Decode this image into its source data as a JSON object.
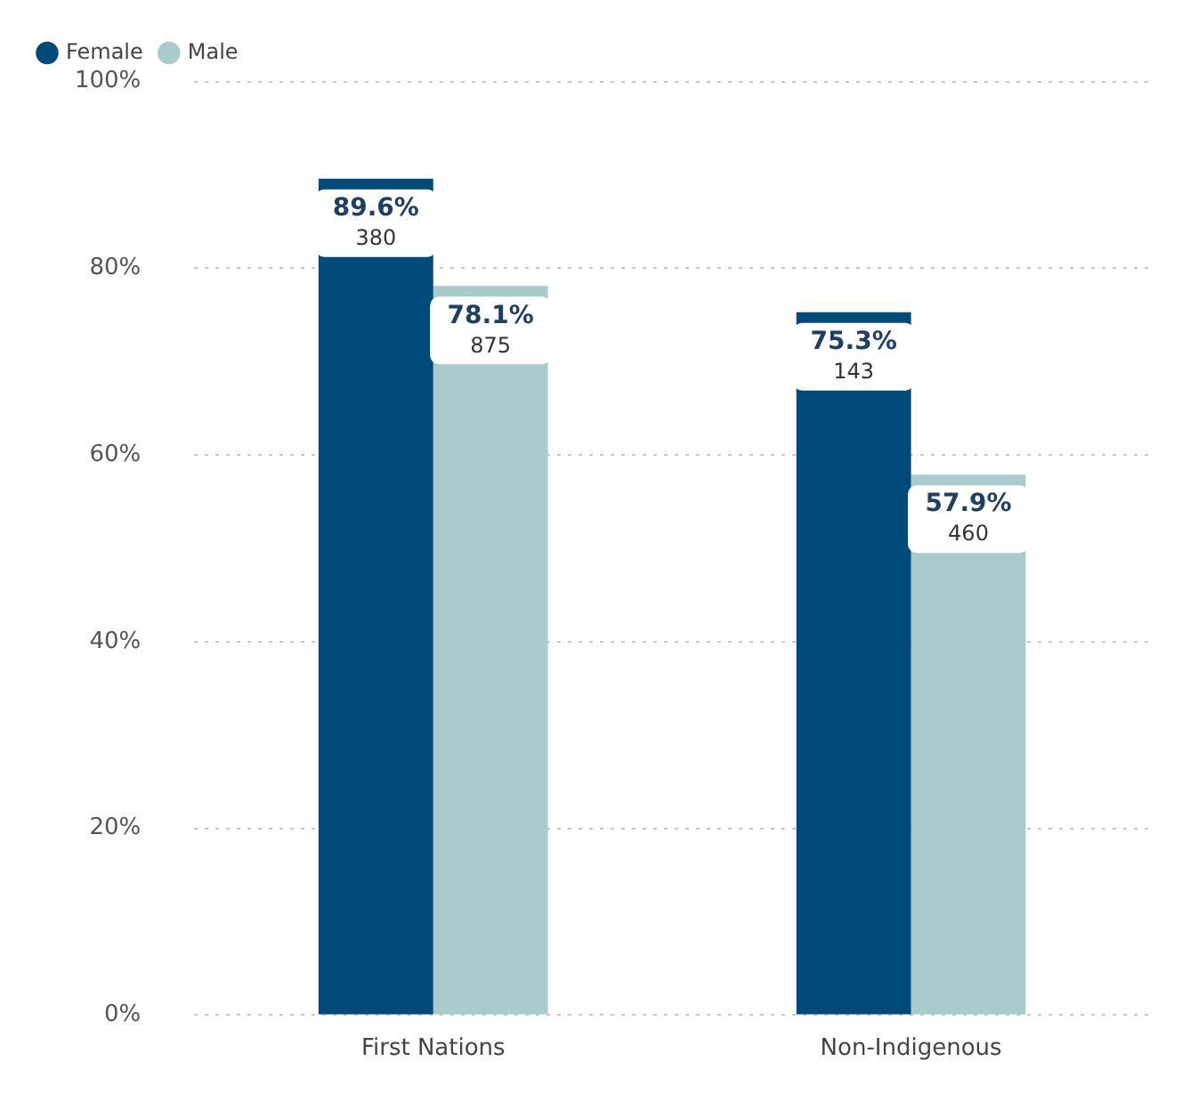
{
  "chart_data": {
    "type": "bar",
    "categories": [
      "First Nations",
      "Non-Indigenous"
    ],
    "series": [
      {
        "name": "Female",
        "color": "#004b7a",
        "values": [
          89.6,
          75.3
        ],
        "value_labels": [
          "89.6%\n380",
          "75.3%\n143"
        ]
      },
      {
        "name": "Male",
        "color": "#a9cbcb",
        "values": [
          78.1,
          57.9
        ],
        "value_labels": [
          "78.1%\n875",
          "57.9%\n460"
        ]
      }
    ],
    "ylim": [
      0,
      100
    ],
    "yticks": [
      {
        "value": 0,
        "label": "0%"
      },
      {
        "value": 20,
        "label": "20%"
      },
      {
        "value": 40,
        "label": "40%"
      },
      {
        "value": 60,
        "label": "60%"
      },
      {
        "value": 80,
        "label": "80%"
      },
      {
        "value": 100,
        "label": "100%"
      }
    ],
    "grid": "y",
    "legend": "top left"
  }
}
